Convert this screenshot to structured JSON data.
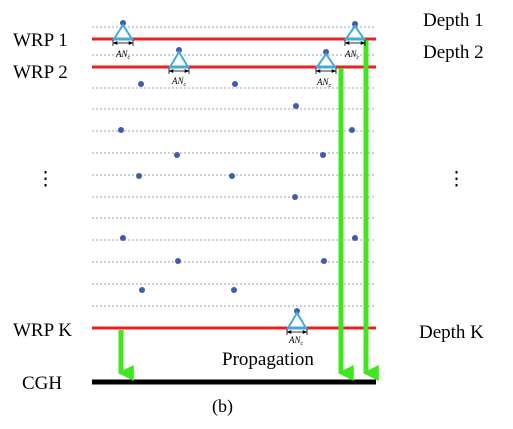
{
  "left_labels": {
    "wrp1": "WRP 1",
    "wrp2": "WRP 2",
    "wrpk": "WRP K",
    "cgh": "CGH"
  },
  "right_labels": {
    "depth1": "Depth 1",
    "depth2": "Depth 2",
    "depthk": "Depth K"
  },
  "propagation_label": "Propagation",
  "caption": "(b)",
  "region_label_main": "AN",
  "region_label_sub": "c",
  "ellipsis": "⋮",
  "colors": {
    "wrp_plane": "#e8211f",
    "cgh_plane": "#000000",
    "propagation_arrow": "#41e61e",
    "object_point": "#3f5ea9",
    "depth_line": "#5f7a99",
    "region_triangle": "#46a9de"
  }
}
